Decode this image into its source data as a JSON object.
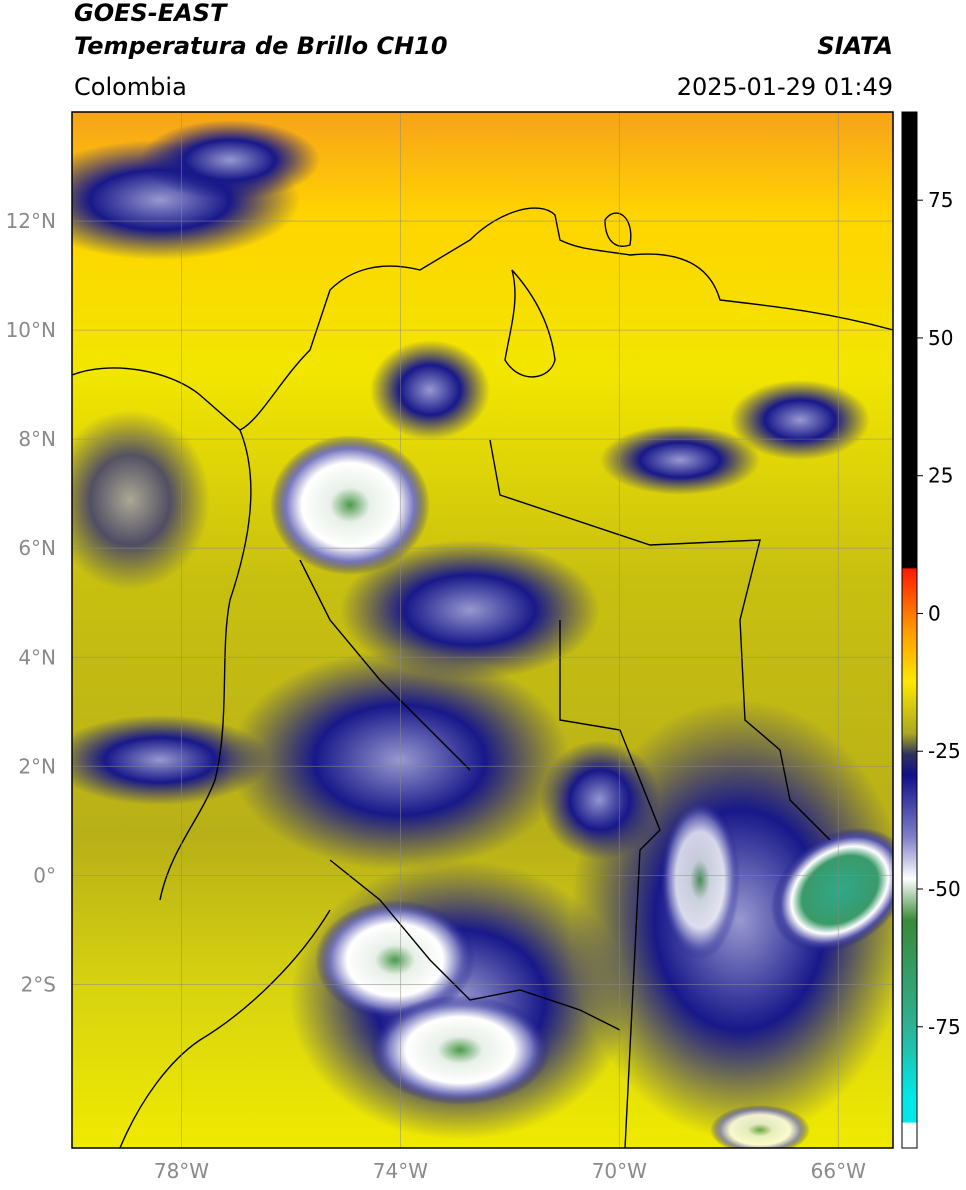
{
  "header": {
    "title_line1": "GOES-EAST",
    "title_line2": "Temperatura de Brillo CH10",
    "source": "SIATA",
    "region": "Colombia",
    "datetime": "2025-01-29 01:49"
  },
  "map": {
    "lon_range": [
      -80,
      -65
    ],
    "lat_range": [
      -5,
      14
    ],
    "lat_ticks": [
      {
        "value": 12,
        "label": "12°N"
      },
      {
        "value": 10,
        "label": "10°N"
      },
      {
        "value": 8,
        "label": "8°N"
      },
      {
        "value": 6,
        "label": "6°N"
      },
      {
        "value": 4,
        "label": "4°N"
      },
      {
        "value": 2,
        "label": "2°N"
      },
      {
        "value": 0,
        "label": "0°"
      },
      {
        "value": -2,
        "label": "2°S"
      }
    ],
    "lon_ticks": [
      {
        "value": -78,
        "label": "78°W"
      },
      {
        "value": -74,
        "label": "74°W"
      },
      {
        "value": -70,
        "label": "70°W"
      },
      {
        "value": -66,
        "label": "66°W"
      }
    ]
  },
  "colorbar": {
    "range": [
      -97,
      91
    ],
    "ticks": [
      75,
      50,
      25,
      0,
      -25,
      -50,
      -75
    ]
  }
}
